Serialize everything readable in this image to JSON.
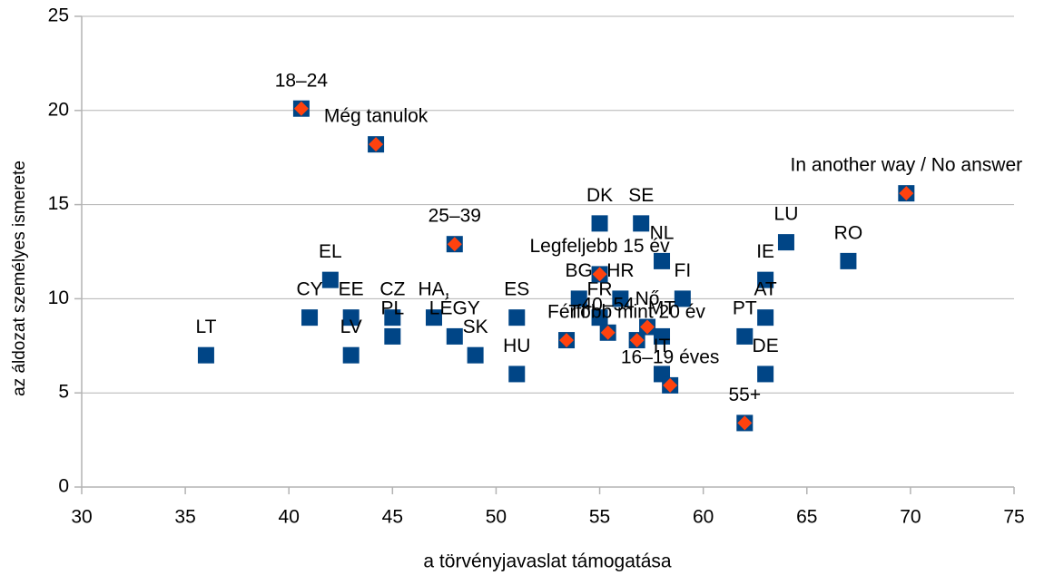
{
  "chart_data": {
    "type": "scatter",
    "xlabel": "a törvényjavaslat támogatása",
    "ylabel": "az áldozat személyes ismerete",
    "xlim": [
      30,
      75
    ],
    "xticks": [
      30,
      35,
      40,
      45,
      50,
      55,
      60,
      65,
      70,
      75
    ],
    "ylim": [
      0,
      25
    ],
    "yticks": [
      0,
      5,
      10,
      15,
      20,
      25
    ],
    "grid": true,
    "series": [
      {
        "color": "#004586",
        "marker": "square",
        "labels": [
          "LT",
          "CY",
          "EL",
          "EE",
          "LV",
          "CZ",
          "PL",
          "HA,",
          "LÉGY",
          "SK",
          "ES",
          "HU",
          "DK",
          "SE",
          "BG",
          "HR",
          "FR",
          "NL",
          "FI",
          "MT",
          "IT",
          "PT",
          "IE",
          "AT",
          "DE",
          "LU",
          "RO"
        ],
        "x": [
          36,
          41,
          42,
          43,
          43,
          45,
          45,
          47,
          48,
          49,
          51,
          51,
          55,
          57,
          54,
          56,
          55,
          58,
          59,
          58,
          58,
          62,
          63,
          63,
          63,
          64,
          67
        ],
        "values": [
          7,
          9,
          11,
          9,
          7,
          9,
          8,
          9,
          8,
          7,
          9,
          6,
          14,
          14,
          10,
          10,
          9,
          12,
          10,
          8,
          6,
          8,
          11,
          9,
          6,
          13,
          12
        ]
      },
      {
        "color": "#ff420e",
        "marker": "diamond",
        "labels": [
          "18–24",
          "Még tanulok",
          "In another way / No answer",
          "25–39",
          "Legfeljebb 15 év",
          "Férfi",
          "40–54",
          "Nő",
          "Több mint 20 év",
          "16–19 éves",
          "55+"
        ],
        "x": [
          40.6,
          44.2,
          69.8,
          48.0,
          55.0,
          53.4,
          55.4,
          57.3,
          56.8,
          58.4,
          62.0
        ],
        "values": [
          20.1,
          18.2,
          15.6,
          12.9,
          11.3,
          7.8,
          8.2,
          8.5,
          7.8,
          5.4,
          3.4
        ]
      }
    ]
  }
}
